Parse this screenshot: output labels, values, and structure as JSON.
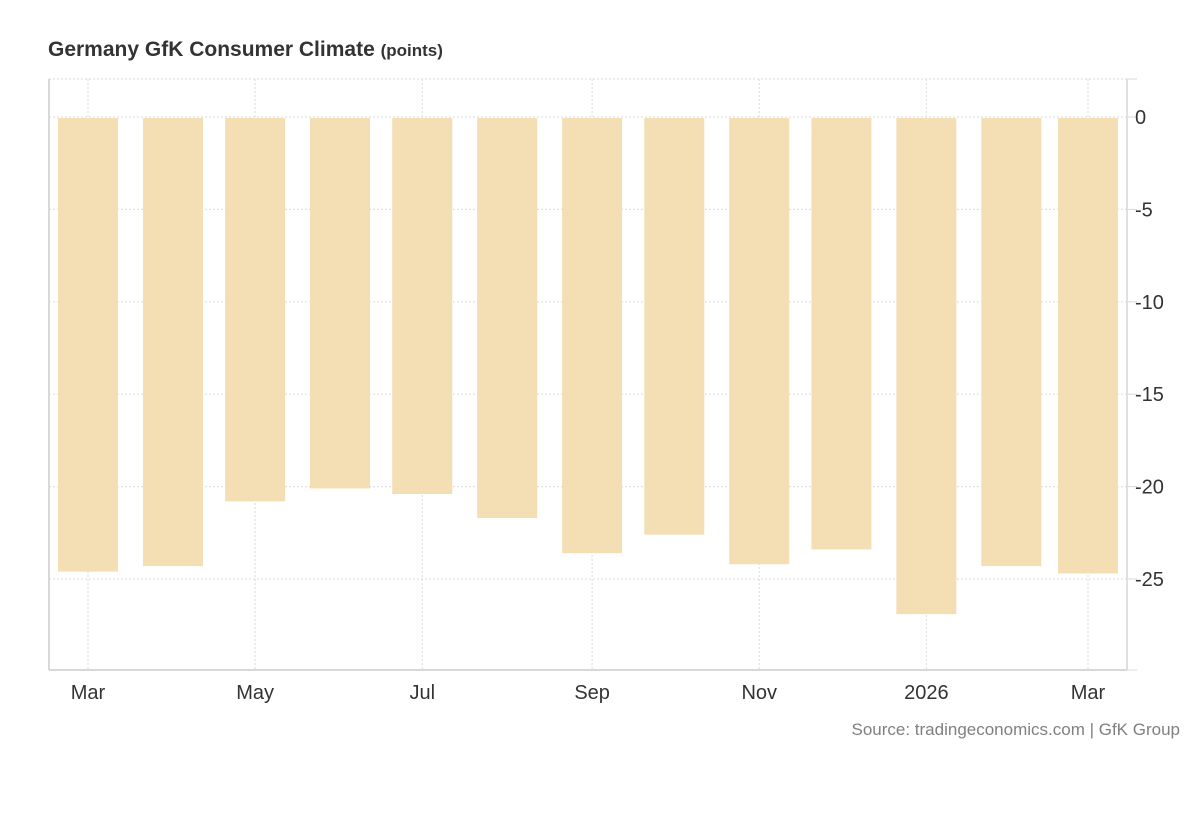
{
  "chart_data": {
    "type": "bar",
    "title": "Germany GfK Consumer Climate",
    "unit": "(points)",
    "categories": [
      "Mar 2025",
      "Apr 2025",
      "May 2025",
      "Jun 2025",
      "Jul 2025",
      "Aug 2025",
      "Sep 2025",
      "Oct 2025",
      "Nov 2025",
      "Dec 2025",
      "Jan 2026",
      "Feb 2026",
      "Mar 2026"
    ],
    "values": [
      -24.6,
      -24.3,
      -20.8,
      -20.1,
      -20.4,
      -21.7,
      -23.6,
      -22.6,
      -24.2,
      -23.4,
      -26.9,
      -24.3,
      -24.7
    ],
    "x_tick_labels": [
      "Mar",
      "May",
      "Jul",
      "Sep",
      "Nov",
      "2026",
      "Mar"
    ],
    "x_tick_categories": [
      "Mar 2025",
      "May 2025",
      "Jul 2025",
      "Sep 2025",
      "Nov 2025",
      "Jan 2026",
      "Mar 2026"
    ],
    "y_ticks": [
      0,
      -5,
      -10,
      -15,
      -20,
      -25
    ],
    "ylim": [
      -30,
      2
    ],
    "y_axis_side": "right",
    "grid": true,
    "xlabel": "",
    "ylabel": "",
    "bar_color": "#f4deb3",
    "grid_color": "#e0e0e0",
    "text_color": "#333333",
    "source": "Source: tradingeconomics.com | GfK Group"
  }
}
